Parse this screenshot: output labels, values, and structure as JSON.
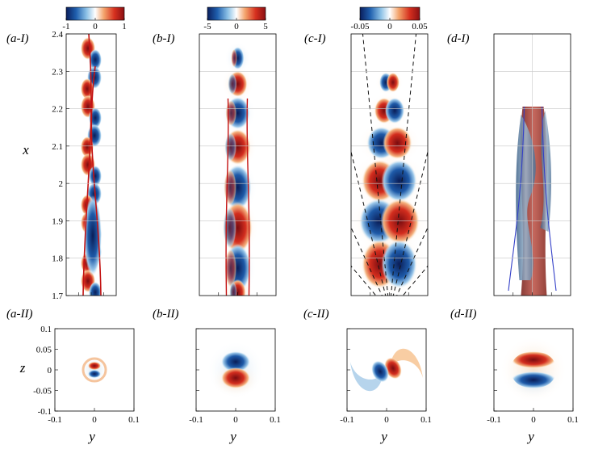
{
  "chart_data": {
    "type": "heatmap",
    "colormap": [
      "#0a1e5c",
      "#1f5fae",
      "#8cc1e6",
      "#ffffff",
      "#f3a36b",
      "#d6301f",
      "#8a0f12"
    ],
    "colorbars": [
      {
        "ticks": [
          "-1",
          "0",
          "1"
        ]
      },
      {
        "ticks": [
          "-5",
          "0",
          "5"
        ]
      },
      {
        "ticks": [
          "-0.05",
          "0",
          "0.05"
        ]
      },
      {
        "ticks": []
      }
    ],
    "top_row": {
      "ylabel": "x",
      "ylim": [
        1.7,
        2.4
      ],
      "yticks": [
        "2.4",
        "2.3",
        "2.2",
        "2.1",
        "2",
        "1.9",
        "1.8",
        "1.7"
      ],
      "panels": [
        {
          "label": "(a-I)",
          "style": "braided"
        },
        {
          "label": "(b-I)",
          "style": "lobes"
        },
        {
          "label": "(c-I)",
          "style": "dipoles-with-dashed-lines"
        },
        {
          "label": "(d-I)",
          "style": "isosurface-3d"
        }
      ]
    },
    "bottom_row": {
      "ylabel": "z",
      "xlabel": "y",
      "xlim": [
        -0.1,
        0.1
      ],
      "ylim": [
        -0.1,
        0.1
      ],
      "xticks": [
        "-0.1",
        "0",
        "0.1"
      ],
      "yticks": [
        "0.1",
        "0.05",
        "0",
        "-0.05",
        "-0.1"
      ],
      "panels": [
        {
          "label": "(a-II)",
          "pattern": "small-dipole-ring"
        },
        {
          "label": "(b-II)",
          "pattern": "vertical-dipole"
        },
        {
          "label": "(c-II)",
          "pattern": "spiral-dipole"
        },
        {
          "label": "(d-II)",
          "pattern": "vertical-dipole-large"
        }
      ]
    }
  }
}
